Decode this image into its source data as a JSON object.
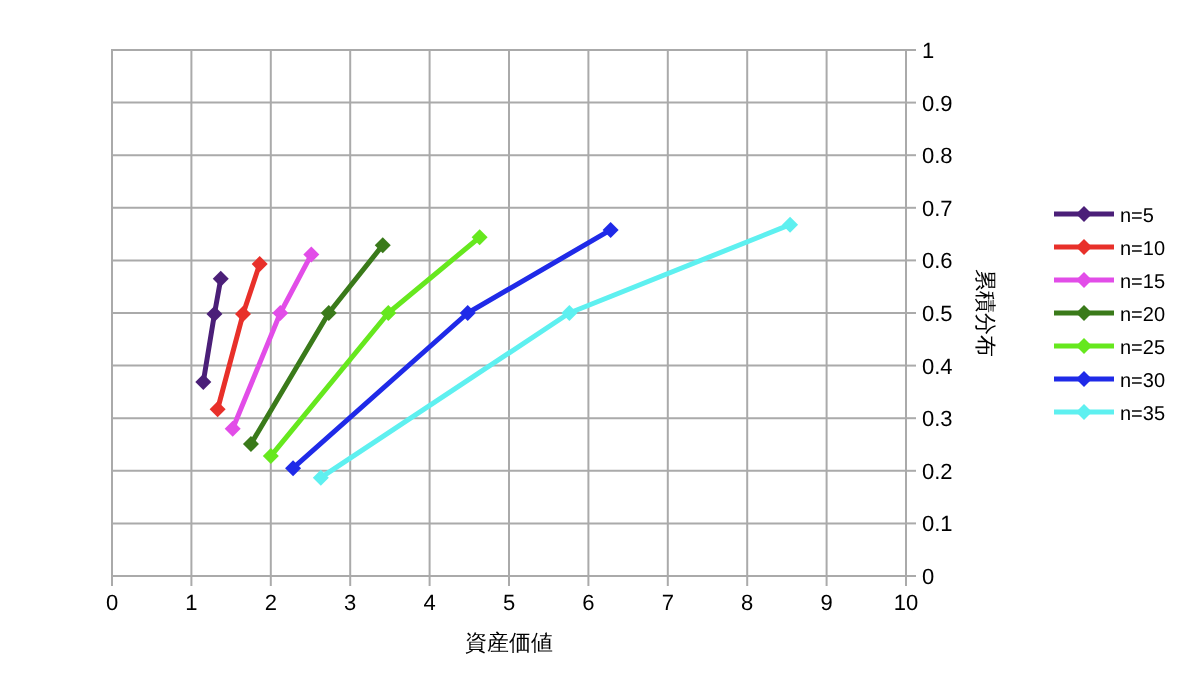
{
  "chart_data": {
    "type": "line",
    "xlabel": "資産価値",
    "ylabel": "累積分布",
    "xlim": [
      0,
      10
    ],
    "ylim": [
      0,
      1
    ],
    "xticks": [
      0,
      1,
      2,
      3,
      4,
      5,
      6,
      7,
      8,
      9,
      10
    ],
    "yticks": [
      0,
      0.1,
      0.2,
      0.3,
      0.4,
      0.5,
      0.6,
      0.7,
      0.8,
      0.9,
      1
    ],
    "grid": true,
    "legend": "right",
    "marker": "diamond",
    "series": [
      {
        "name": "n=5",
        "color": "#4b1f78",
        "x": [
          1.15,
          1.29,
          1.37
        ],
        "values": [
          0.369,
          0.498,
          0.565
        ]
      },
      {
        "name": "n=10",
        "color": "#e8302a",
        "x": [
          1.33,
          1.65,
          1.86
        ],
        "values": [
          0.317,
          0.498,
          0.593
        ]
      },
      {
        "name": "n=15",
        "color": "#e24de8",
        "x": [
          1.52,
          2.12,
          2.51
        ],
        "values": [
          0.28,
          0.5,
          0.611
        ]
      },
      {
        "name": "n=20",
        "color": "#3a7a1a",
        "x": [
          1.75,
          2.73,
          3.41
        ],
        "values": [
          0.251,
          0.5,
          0.629
        ]
      },
      {
        "name": "n=25",
        "color": "#66e81e",
        "x": [
          2.0,
          3.48,
          4.63
        ],
        "values": [
          0.228,
          0.5,
          0.644
        ]
      },
      {
        "name": "n=30",
        "color": "#1f2ae8",
        "x": [
          2.28,
          4.48,
          6.28
        ],
        "values": [
          0.205,
          0.5,
          0.658
        ]
      },
      {
        "name": "n=35",
        "color": "#5ef0f0",
        "x": [
          2.63,
          5.76,
          8.54
        ],
        "values": [
          0.187,
          0.5,
          0.668
        ]
      }
    ]
  }
}
